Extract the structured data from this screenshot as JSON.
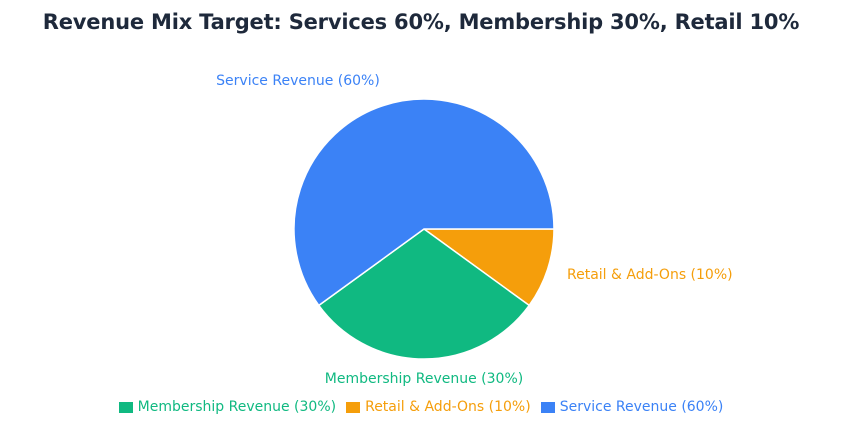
{
  "chart_data": {
    "type": "pie",
    "title": "Revenue Mix Target: Services 60%, Membership 30%, Retail 10%",
    "slices": [
      {
        "label": "Membership Revenue (30%)",
        "value": 30,
        "color": "#10b981"
      },
      {
        "label": "Retail & Add-Ons (10%)",
        "value": 10,
        "color": "#f59e0b"
      },
      {
        "label": "Service Revenue (60%)",
        "value": 60,
        "color": "#3b82f6"
      }
    ],
    "legend_position": "bottom",
    "start_angle": "3 o'clock, counter-clockwise order: Retail, Service, Membership"
  }
}
